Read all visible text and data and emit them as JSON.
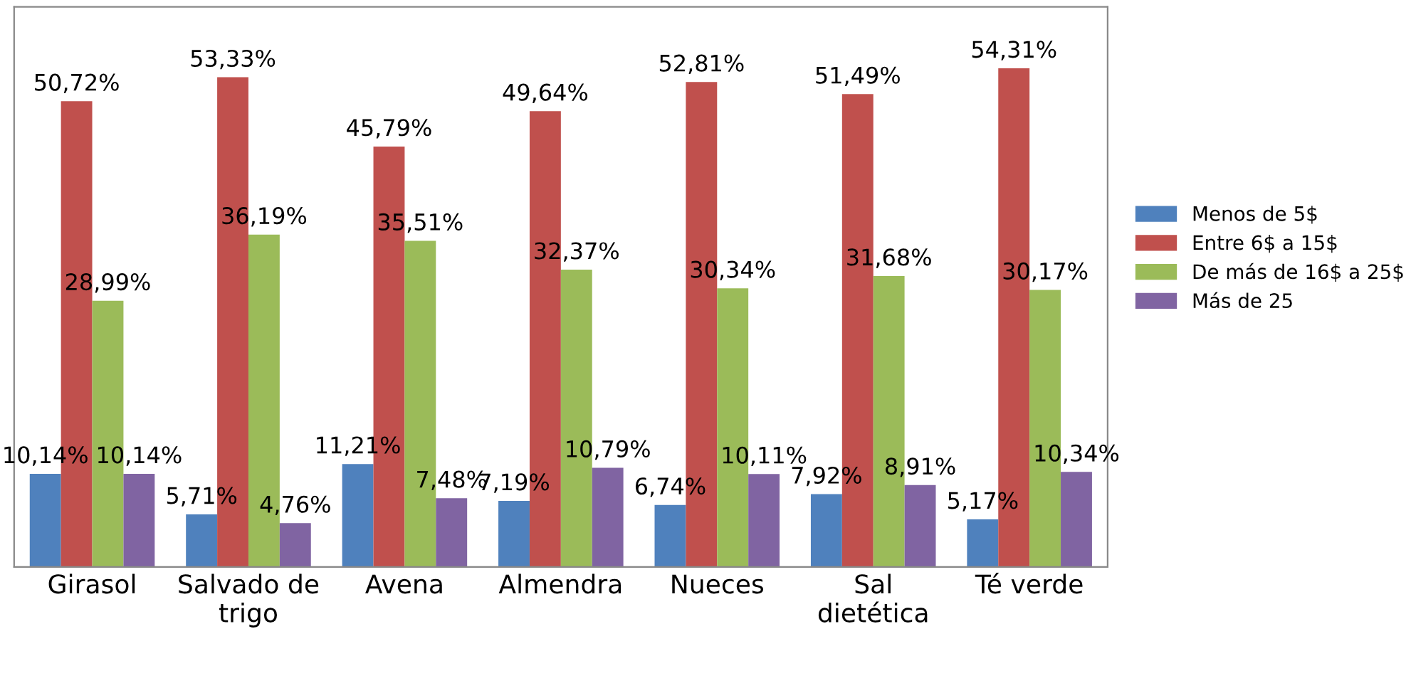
{
  "chart_data": {
    "type": "bar",
    "categories": [
      "Girasol",
      "Salvado de\ntrigo",
      "Avena",
      "Almendra",
      "Nueces",
      "Sal\ndietética",
      "Té verde"
    ],
    "series": [
      {
        "name": "Menos de 5$",
        "color": "#4f81bd",
        "values": [
          10.14,
          5.71,
          11.21,
          7.19,
          6.74,
          7.92,
          5.17
        ],
        "value_labels": [
          "10,14%",
          "5,71%",
          "11,21%",
          "7,19%",
          "6,74%",
          "7,92%",
          "5,17%"
        ]
      },
      {
        "name": "Entre 6$ a 15$",
        "color": "#c0504d",
        "values": [
          50.72,
          53.33,
          45.79,
          49.64,
          52.81,
          51.49,
          54.31
        ],
        "value_labels": [
          "50,72%",
          "53,33%",
          "45,79%",
          "49,64%",
          "52,81%",
          "51,49%",
          "54,31%"
        ]
      },
      {
        "name": "De más de 16$ a 25$",
        "color": "#9bbb59",
        "values": [
          28.99,
          36.19,
          35.51,
          32.37,
          30.34,
          31.68,
          30.17
        ],
        "value_labels": [
          "28,99%",
          "36,19%",
          "35,51%",
          "32,37%",
          "30,34%",
          "31,68%",
          "30,17%"
        ]
      },
      {
        "name": "Más de 25",
        "color": "#8064a2",
        "values": [
          10.14,
          4.76,
          7.48,
          10.79,
          10.11,
          8.91,
          10.34
        ],
        "value_labels": [
          "10,14%",
          "4,76%",
          "7,48%",
          "10,79%",
          "10,11%",
          "8,91%",
          "10,34%"
        ]
      }
    ],
    "ylim": [
      0,
      61
    ],
    "tick_labels": "x",
    "grid": false,
    "legend": "right"
  }
}
